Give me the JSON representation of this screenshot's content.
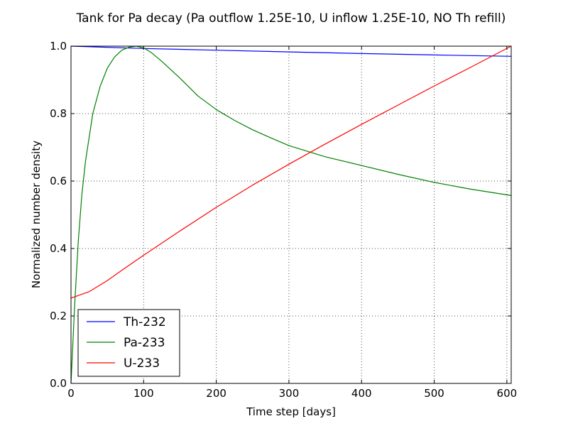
{
  "chart_data": {
    "type": "line",
    "title": "Tank for Pa decay (Pa outflow 1.25E-10, U inflow 1.25E-10, NO Th refill)",
    "xlabel": "Time step [days]",
    "ylabel": "Normalized number density",
    "xlim": [
      0,
      606
    ],
    "ylim": [
      0.0,
      1.0
    ],
    "xticks": [
      0,
      100,
      200,
      300,
      400,
      500,
      600
    ],
    "yticks": [
      0.0,
      0.2,
      0.4,
      0.6,
      0.8,
      1.0
    ],
    "xtick_labels": [
      "0",
      "100",
      "200",
      "300",
      "400",
      "500",
      "600"
    ],
    "ytick_labels": [
      "0.0",
      "0.2",
      "0.4",
      "0.6",
      "0.8",
      "1.0"
    ],
    "grid": true,
    "legend_position": "bottom-left",
    "series": [
      {
        "name": "Th-232",
        "color": "#0000ff",
        "x": [
          0,
          100,
          200,
          300,
          400,
          500,
          606
        ],
        "y": [
          1.0,
          0.993,
          0.988,
          0.983,
          0.978,
          0.974,
          0.97
        ]
      },
      {
        "name": "Pa-233",
        "color": "#008000",
        "x": [
          0,
          5,
          10,
          15,
          20,
          30,
          40,
          50,
          60,
          70,
          80,
          90,
          100,
          110,
          125,
          150,
          175,
          200,
          225,
          250,
          275,
          300,
          350,
          400,
          450,
          500,
          550,
          606
        ],
        "y": [
          0.0,
          0.23,
          0.42,
          0.56,
          0.66,
          0.8,
          0.88,
          0.935,
          0.968,
          0.988,
          0.997,
          1.0,
          0.995,
          0.982,
          0.955,
          0.905,
          0.852,
          0.812,
          0.78,
          0.752,
          0.728,
          0.705,
          0.672,
          0.646,
          0.62,
          0.596,
          0.576,
          0.557
        ]
      },
      {
        "name": "U-233",
        "color": "#ff0000",
        "x": [
          0,
          25,
          50,
          75,
          100,
          150,
          200,
          250,
          300,
          350,
          400,
          450,
          500,
          550,
          606
        ],
        "y": [
          0.253,
          0.272,
          0.305,
          0.343,
          0.38,
          0.452,
          0.522,
          0.588,
          0.65,
          0.71,
          0.768,
          0.825,
          0.882,
          0.937,
          1.0
        ]
      }
    ]
  }
}
